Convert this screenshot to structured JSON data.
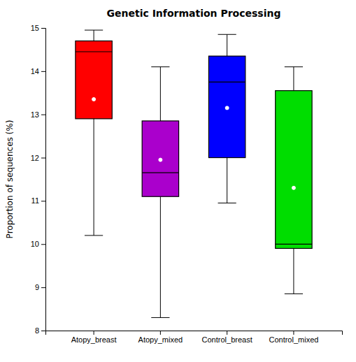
{
  "chart_data": {
    "type": "box",
    "title": "Genetic Information Processing",
    "ylabel": "Proportion of sequences (%)",
    "categories": [
      "Atopy_breast",
      "Atopy_mixed",
      "Control_breast",
      "Control_mixed"
    ],
    "boxes": [
      {
        "whislo": 10.2,
        "q1": 12.9,
        "med": 14.45,
        "q3": 14.7,
        "whishi": 14.95,
        "mean": 13.35
      },
      {
        "whislo": 8.3,
        "q1": 11.1,
        "med": 11.65,
        "q3": 12.85,
        "whishi": 14.1,
        "mean": 11.95
      },
      {
        "whislo": 10.95,
        "q1": 12.0,
        "med": 13.75,
        "q3": 14.35,
        "whishi": 14.85,
        "mean": 13.15
      },
      {
        "whislo": 8.85,
        "q1": 9.9,
        "med": 10.0,
        "q3": 13.55,
        "whishi": 14.1,
        "mean": 11.3
      }
    ],
    "colors": [
      "#ff0000",
      "#aa00cc",
      "#0000ff",
      "#00dd00"
    ],
    "ylim": [
      8,
      15
    ],
    "yticks": [
      8,
      9,
      10,
      11,
      12,
      13,
      14,
      15
    ],
    "grid": false
  }
}
